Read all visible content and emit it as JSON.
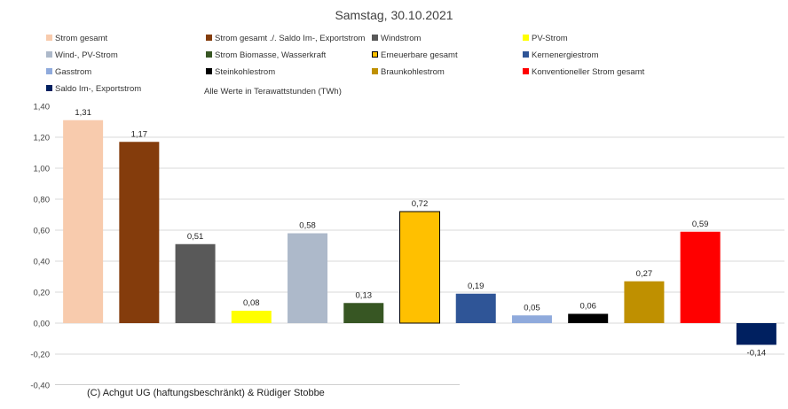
{
  "chart_data": {
    "type": "bar",
    "title": "Samstag, 30.10.2021",
    "subtitle": "Alle Werte in Terawattstunden (TWh)",
    "categories": [
      "Strom gesamt",
      "Strom gesamt ./. Saldo Im-, Exportstrom",
      "Windstrom",
      "PV-Strom",
      "Wind-, PV-Strom",
      "Strom Biomasse, Wasserkraft",
      "Erneuerbare gesamt",
      "Kernenergiestrom",
      "Gasstrom",
      "Steinkohlestrom",
      "Braunkohlestrom",
      "Konventioneller Strom gesamt",
      "Saldo Im-, Exportstrom"
    ],
    "values": [
      1.31,
      1.17,
      0.51,
      0.08,
      0.58,
      0.13,
      0.72,
      0.19,
      0.05,
      0.06,
      0.27,
      0.59,
      -0.14
    ],
    "value_labels": [
      "1,31",
      "1,17",
      "0,51",
      "0,08",
      "0,58",
      "0,13",
      "0,72",
      "0,19",
      "0,05",
      "0,06",
      "0,27",
      "0,59",
      "-0,14"
    ],
    "colors": [
      "#f8cbad",
      "#843c0c",
      "#595959",
      "#ffff00",
      "#adb9ca",
      "#375623",
      "#ffc000",
      "#2f5597",
      "#8faadc",
      "#000000",
      "#bf9000",
      "#ff0000",
      "#002060"
    ],
    "ylim": [
      -0.4,
      1.4
    ],
    "yticks": [
      1.4,
      1.2,
      1.0,
      0.8,
      0.6,
      0.4,
      0.2,
      0.0,
      -0.2,
      -0.4
    ],
    "ytick_labels": [
      "1,40",
      "1,20",
      "1,00",
      "0,80",
      "0,60",
      "0,40",
      "0,20",
      "0,00",
      "-0,20",
      "-0,40"
    ],
    "grid": true,
    "legend_position": "top"
  },
  "footer": "(C) Achgut UG (haftungsbeschränkt) & Rüdiger Stobbe"
}
